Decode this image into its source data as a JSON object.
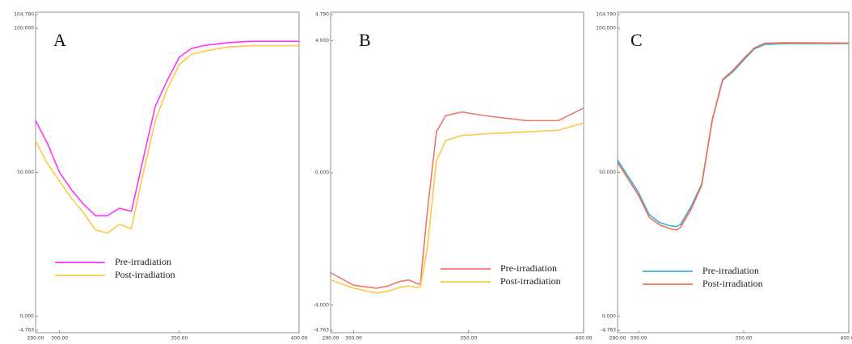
{
  "chart_data": [
    {
      "type": "line",
      "panel_label": "A",
      "x": [
        290,
        295,
        300,
        305,
        310,
        315,
        320,
        325,
        330,
        335,
        340,
        345,
        350,
        355,
        360,
        370,
        380,
        400
      ],
      "series": [
        {
          "name": "Pre-irradiation",
          "color": "#ff33ff",
          "values": [
            68,
            60,
            50,
            44,
            39,
            35,
            35,
            37.6,
            36.5,
            55,
            73,
            82,
            90,
            93,
            94,
            95,
            95.5,
            95.5
          ]
        },
        {
          "name": "Post-irradiation",
          "color": "#ffc845",
          "values": [
            61,
            53,
            47,
            41,
            36,
            30,
            29,
            32,
            30.5,
            50,
            68,
            79,
            87.5,
            91,
            92,
            93.5,
            94,
            94
          ]
        }
      ],
      "xlim": [
        290,
        400
      ],
      "xticks": [
        {
          "value": 290,
          "label": "290.00"
        },
        {
          "value": 300,
          "label": "300.00"
        },
        {
          "value": 350,
          "label": "350.00"
        },
        {
          "value": 400,
          "label": "400.00"
        }
      ],
      "ylim": [
        -4.763,
        104.79
      ],
      "yticks": [
        {
          "value": -4.763,
          "label": "-4.763"
        },
        {
          "value": 0,
          "label": "0.000"
        },
        {
          "value": 50,
          "label": "50.000"
        },
        {
          "value": 100,
          "label": "100.000"
        },
        {
          "value": 104.79,
          "label": "104.790"
        }
      ]
    },
    {
      "type": "line",
      "panel_label": "B",
      "x": [
        290,
        300,
        310,
        315,
        320,
        324,
        327,
        329,
        332,
        336,
        340,
        347,
        357,
        375,
        389,
        400
      ],
      "series": [
        {
          "name": "Pre-irradiation",
          "color": "#f07868",
          "values": [
            -3.02,
            -3.4,
            -3.49,
            -3.42,
            -3.29,
            -3.24,
            -3.33,
            -3.38,
            -1.2,
            1.24,
            1.73,
            1.84,
            1.73,
            1.58,
            1.58,
            1.96
          ]
        },
        {
          "name": "Post-irradiation",
          "color": "#ffc845",
          "values": [
            -3.24,
            -3.49,
            -3.64,
            -3.58,
            -3.47,
            -3.42,
            -3.47,
            -3.45,
            -2.3,
            0.36,
            0.98,
            1.13,
            1.18,
            1.24,
            1.29,
            1.51
          ]
        }
      ],
      "xlim": [
        290,
        400
      ],
      "xticks": [
        {
          "value": 290,
          "label": "290.00"
        },
        {
          "value": 300,
          "label": "300.00"
        },
        {
          "value": 350,
          "label": "350.00"
        },
        {
          "value": 400,
          "label": "400.00"
        }
      ],
      "ylim": [
        -4.763,
        4.79
      ],
      "yticks": [
        {
          "value": -4.763,
          "label": "-4.763"
        },
        {
          "value": -4,
          "label": "-4.000"
        },
        {
          "value": 0,
          "label": "0.000"
        },
        {
          "value": 4,
          "label": "4.000"
        },
        {
          "value": 4.79,
          "label": "4.790"
        }
      ]
    },
    {
      "type": "line",
      "panel_label": "C",
      "x": [
        290,
        300,
        305,
        310,
        315,
        318,
        320,
        325,
        330,
        335,
        340,
        345,
        350,
        355,
        360,
        370,
        400
      ],
      "series": [
        {
          "name": "Pre-irradiation",
          "color": "#3aaede",
          "values": [
            54.3,
            43,
            35.4,
            32.6,
            31.5,
            31.2,
            32,
            38.2,
            46,
            68,
            82,
            85,
            89,
            92.8,
            94.4,
            94.7,
            94.7
          ]
        },
        {
          "name": "Post-irradiation",
          "color": "#f07050",
          "values": [
            53.5,
            42,
            34.5,
            31.8,
            30.5,
            30,
            31,
            37.2,
            45.5,
            68,
            82.3,
            85.5,
            89.5,
            93.2,
            94.8,
            95,
            94.9
          ]
        }
      ],
      "xlim": [
        290,
        400
      ],
      "xticks": [
        {
          "value": 290,
          "label": "290.00"
        },
        {
          "value": 300,
          "label": "300.00"
        },
        {
          "value": 350,
          "label": "350.00"
        },
        {
          "value": 400,
          "label": "400.00"
        }
      ],
      "ylim": [
        -4.763,
        104.79
      ],
      "yticks": [
        {
          "value": -4.763,
          "label": "-4.763"
        },
        {
          "value": 0,
          "label": "0.000"
        },
        {
          "value": 50,
          "label": "50.000"
        },
        {
          "value": 100,
          "label": "100.000"
        },
        {
          "value": 104.79,
          "label": "104.790"
        }
      ]
    }
  ]
}
